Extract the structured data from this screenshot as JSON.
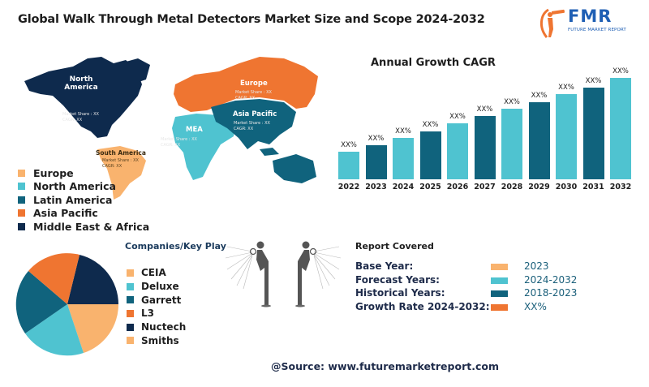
{
  "header": {
    "title": "Global Walk Through Metal Detectors Market Size and Scope 2024-2032",
    "logo": {
      "text": "FMR",
      "subtitle": "FUTURE MARKET REPORT",
      "icon": "telescope-person-icon"
    }
  },
  "colors": {
    "light_orange": "#f9b36e",
    "cyan": "#4fc3d0",
    "teal": "#10637d",
    "orange": "#ef7531",
    "navy": "#0e2a4d"
  },
  "map": {
    "regions": [
      {
        "name": "North America",
        "market_share": "Market Share : XX",
        "cagr": "CAGR: XX"
      },
      {
        "name": "Europe",
        "market_share": "Market Share : XX",
        "cagr": "CAGR: XX"
      },
      {
        "name": "Asia Pacific",
        "market_share": "Market Share : XX",
        "cagr": "CAGR: XX"
      },
      {
        "name": "MEA",
        "market_share": "Market Share : XX",
        "cagr": "CAGR: XX"
      },
      {
        "name": "South America",
        "market_share": "Market Share : XX",
        "cagr": "CAGR: XX"
      }
    ],
    "legend": [
      {
        "label": "Europe",
        "color": "#f9b36e"
      },
      {
        "label": "North America",
        "color": "#4fc3d0"
      },
      {
        "label": "Latin America",
        "color": "#10637d"
      },
      {
        "label": "Asia Pacific",
        "color": "#ef7531"
      },
      {
        "label": "Middle East & Africa",
        "color": "#0e2a4d"
      }
    ]
  },
  "chart_data": [
    {
      "type": "bar",
      "title": "Annual Growth CAGR",
      "categories": [
        "2022",
        "2023",
        "2024",
        "2025",
        "2026",
        "2027",
        "2028",
        "2029",
        "2030",
        "2031",
        "2032"
      ],
      "values": [
        34,
        42,
        51,
        59,
        69,
        78,
        87,
        95,
        105,
        113,
        125
      ],
      "value_labels": [
        "XX%",
        "XX%",
        "XX%",
        "XX%",
        "XX%",
        "XX%",
        "XX%",
        "XX%",
        "XX%",
        "XX%",
        "XX%"
      ],
      "colors": [
        "#4fc3d0",
        "#10637d",
        "#4fc3d0",
        "#10637d",
        "#4fc3d0",
        "#10637d",
        "#4fc3d0",
        "#10637d",
        "#4fc3d0",
        "#10637d",
        "#4fc3d0"
      ],
      "xlabel": "",
      "ylabel": "",
      "grid": false,
      "note": "relative bar heights in px; actual values masked as XX%"
    },
    {
      "type": "pie",
      "title": "Companies/Key Play",
      "labels": [
        "CEIA",
        "Deluxe",
        "Garrett",
        "L3",
        "Nuctech",
        "Smiths"
      ],
      "values": [
        0,
        20,
        20,
        20,
        20,
        20
      ],
      "colors": [
        "#f9b36e",
        "#4fc3d0",
        "#10637d",
        "#ef7531",
        "#0e2a4d",
        "#f9b36e"
      ],
      "legend_position": "right"
    }
  ],
  "companies": {
    "title": "Companies/Key Play",
    "items": [
      {
        "label": "CEIA",
        "color": "#f9b36e"
      },
      {
        "label": "Deluxe",
        "color": "#4fc3d0"
      },
      {
        "label": "Garrett",
        "color": "#10637d"
      },
      {
        "label": "L3",
        "color": "#ef7531"
      },
      {
        "label": "Nuctech",
        "color": "#0e2a4d"
      },
      {
        "label": "Smiths",
        "color": "#f9b36e"
      }
    ]
  },
  "report": {
    "title": "Report Covered",
    "rows": [
      {
        "label": "Base Year:",
        "value": "2023",
        "color": "#f9b36e"
      },
      {
        "label": "Forecast Years:",
        "value": "2024-2032",
        "color": "#4fc3d0"
      },
      {
        "label": "Historical Years:",
        "value": "2018-2023",
        "color": "#10637d"
      },
      {
        "label": "Growth Rate 2024-2032:",
        "value": "XX%",
        "color": "#ef7531"
      }
    ]
  },
  "footer": {
    "source": "@Source: www.futuremarketreport.com"
  }
}
